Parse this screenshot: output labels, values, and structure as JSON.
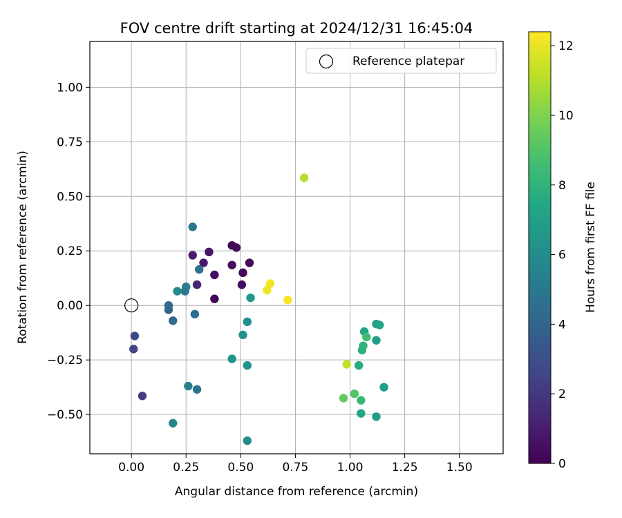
{
  "chart_data": {
    "type": "scatter",
    "title": "FOV centre drift starting at 2024/12/31 16:45:04",
    "xlabel": "Angular distance from reference (arcmin)",
    "ylabel": "Rotation from reference (arcmin)",
    "xlim": [
      -0.19,
      1.7
    ],
    "ylim": [
      -0.68,
      1.21
    ],
    "xticks": [
      0.0,
      0.25,
      0.5,
      0.75,
      1.0,
      1.25,
      1.5
    ],
    "xtick_labels": [
      "0.00",
      "0.25",
      "0.50",
      "0.75",
      "1.00",
      "1.25",
      "1.50"
    ],
    "yticks": [
      -0.5,
      -0.25,
      0.0,
      0.25,
      0.5,
      0.75,
      1.0
    ],
    "ytick_labels": [
      "−0.50",
      "−0.25",
      "0.00",
      "0.25",
      "0.50",
      "0.75",
      "1.00"
    ],
    "grid": true,
    "legend": {
      "placement": "top-right",
      "entries": [
        {
          "label": "Reference platepar",
          "marker": "open-circle"
        }
      ]
    },
    "reference_point": {
      "x": 0.0,
      "y": 0.0
    },
    "colorbar": {
      "label": "Hours from first FF file",
      "min": 0,
      "max": 12.4,
      "ticks": [
        0,
        2,
        4,
        6,
        8,
        10,
        12
      ],
      "tick_labels": [
        "0",
        "2",
        "4",
        "6",
        "8",
        "10",
        "12"
      ],
      "colormap": "viridis"
    },
    "points": [
      {
        "x": 0.38,
        "y": 0.03,
        "c": 0.1
      },
      {
        "x": 0.46,
        "y": 0.275,
        "c": 0.2
      },
      {
        "x": 0.48,
        "y": 0.265,
        "c": 0.3
      },
      {
        "x": 0.51,
        "y": 0.15,
        "c": 0.25
      },
      {
        "x": 0.54,
        "y": 0.195,
        "c": 0.35
      },
      {
        "x": 0.46,
        "y": 0.185,
        "c": 0.4
      },
      {
        "x": 0.505,
        "y": 0.095,
        "c": 0.45
      },
      {
        "x": 0.38,
        "y": 0.14,
        "c": 0.5
      },
      {
        "x": 0.355,
        "y": 0.245,
        "c": 0.7
      },
      {
        "x": 0.33,
        "y": 0.195,
        "c": 0.9
      },
      {
        "x": 0.28,
        "y": 0.23,
        "c": 1.0
      },
      {
        "x": 0.3,
        "y": 0.095,
        "c": 1.2
      },
      {
        "x": 0.05,
        "y": -0.415,
        "c": 2.2
      },
      {
        "x": 0.01,
        "y": -0.2,
        "c": 2.5
      },
      {
        "x": 0.015,
        "y": -0.14,
        "c": 2.8
      },
      {
        "x": 0.17,
        "y": -0.02,
        "c": 4.0
      },
      {
        "x": 0.17,
        "y": 0.0,
        "c": 4.2
      },
      {
        "x": 0.19,
        "y": -0.07,
        "c": 4.3
      },
      {
        "x": 0.29,
        "y": -0.04,
        "c": 4.5
      },
      {
        "x": 0.31,
        "y": 0.165,
        "c": 4.6
      },
      {
        "x": 0.28,
        "y": 0.36,
        "c": 4.8
      },
      {
        "x": 0.3,
        "y": -0.385,
        "c": 4.8
      },
      {
        "x": 0.245,
        "y": 0.065,
        "c": 5.0
      },
      {
        "x": 0.25,
        "y": 0.085,
        "c": 5.2
      },
      {
        "x": 0.26,
        "y": -0.37,
        "c": 5.4
      },
      {
        "x": 0.19,
        "y": -0.54,
        "c": 5.6
      },
      {
        "x": 0.21,
        "y": 0.065,
        "c": 5.8
      },
      {
        "x": 0.53,
        "y": -0.62,
        "c": 6.0
      },
      {
        "x": 0.53,
        "y": -0.075,
        "c": 6.1
      },
      {
        "x": 0.51,
        "y": -0.135,
        "c": 6.2
      },
      {
        "x": 0.53,
        "y": -0.275,
        "c": 6.3
      },
      {
        "x": 0.46,
        "y": -0.245,
        "c": 6.4
      },
      {
        "x": 0.545,
        "y": 0.035,
        "c": 6.6
      },
      {
        "x": 1.155,
        "y": -0.375,
        "c": 6.8
      },
      {
        "x": 1.12,
        "y": -0.51,
        "c": 6.9
      },
      {
        "x": 1.12,
        "y": -0.16,
        "c": 7.0
      },
      {
        "x": 1.12,
        "y": -0.085,
        "c": 7.1
      },
      {
        "x": 1.135,
        "y": -0.09,
        "c": 7.2
      },
      {
        "x": 1.065,
        "y": -0.12,
        "c": 7.3
      },
      {
        "x": 1.05,
        "y": -0.495,
        "c": 7.4
      },
      {
        "x": 1.04,
        "y": -0.275,
        "c": 7.6
      },
      {
        "x": 1.055,
        "y": -0.205,
        "c": 7.8
      },
      {
        "x": 1.06,
        "y": -0.185,
        "c": 8.0
      },
      {
        "x": 1.05,
        "y": -0.435,
        "c": 8.3
      },
      {
        "x": 1.075,
        "y": -0.145,
        "c": 8.5
      },
      {
        "x": 1.02,
        "y": -0.405,
        "c": 9.0
      },
      {
        "x": 0.97,
        "y": -0.425,
        "c": 9.4
      },
      {
        "x": 0.985,
        "y": -0.27,
        "c": 11.3
      },
      {
        "x": 0.79,
        "y": 0.585,
        "c": 11.0
      },
      {
        "x": 0.62,
        "y": 0.07,
        "c": 12.1
      },
      {
        "x": 0.635,
        "y": 0.1,
        "c": 12.2
      },
      {
        "x": 0.715,
        "y": 0.025,
        "c": 12.3
      }
    ]
  }
}
